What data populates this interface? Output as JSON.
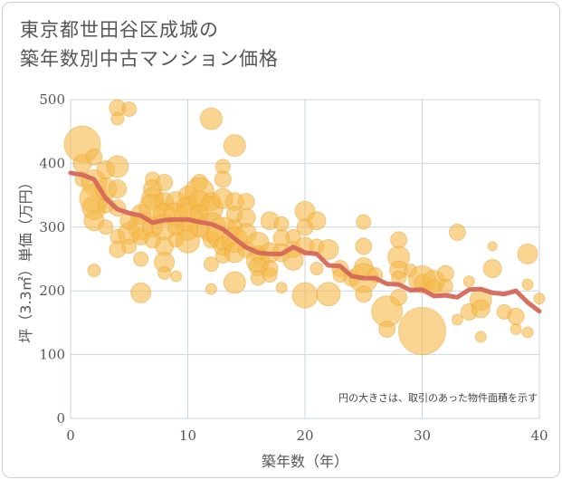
{
  "title_lines": [
    "東京都世田谷区成城の",
    "築年数別中古マンション価格"
  ],
  "note": "円の大きさは、取引のあった物件面積を示す",
  "colors": {
    "bubble": "#f5b947",
    "bubble_stroke": "#e9a63a",
    "trend": "#d5675a",
    "grid": "#c9d6e3",
    "plot_bg": "#ffffff"
  },
  "chart_data": {
    "type": "scatter",
    "xlabel": "築年数（年）",
    "ylabel": "坪（3.3㎡）単価（万円）",
    "xlim": [
      0,
      40
    ],
    "ylim": [
      0,
      500
    ],
    "xticks": [
      0,
      10,
      20,
      30,
      40
    ],
    "yticks": [
      0,
      100,
      200,
      300,
      400,
      500
    ],
    "grid": true,
    "bubbles": [
      [
        1,
        430,
        20
      ],
      [
        1,
        400,
        10
      ],
      [
        1,
        375,
        8
      ],
      [
        2,
        410,
        9
      ],
      [
        2,
        370,
        14
      ],
      [
        2,
        345,
        16
      ],
      [
        2,
        330,
        13
      ],
      [
        2,
        310,
        11
      ],
      [
        2,
        232,
        7
      ],
      [
        3,
        390,
        10
      ],
      [
        3,
        360,
        12
      ],
      [
        3,
        335,
        9
      ],
      [
        3,
        300,
        8
      ],
      [
        4,
        487,
        9
      ],
      [
        4,
        470,
        7
      ],
      [
        4,
        395,
        12
      ],
      [
        4,
        360,
        10
      ],
      [
        4,
        330,
        9
      ],
      [
        4,
        285,
        8
      ],
      [
        4,
        265,
        9
      ],
      [
        5,
        485,
        8
      ],
      [
        5,
        310,
        10
      ],
      [
        5,
        290,
        12
      ],
      [
        5,
        270,
        8
      ],
      [
        6,
        320,
        11
      ],
      [
        6,
        300,
        14
      ],
      [
        6,
        285,
        9
      ],
      [
        6,
        250,
        8
      ],
      [
        6,
        197,
        11
      ],
      [
        7,
        375,
        8
      ],
      [
        7,
        360,
        10
      ],
      [
        7,
        345,
        12
      ],
      [
        7,
        330,
        15
      ],
      [
        7,
        300,
        11
      ],
      [
        7,
        280,
        9
      ],
      [
        8,
        370,
        9
      ],
      [
        8,
        340,
        10
      ],
      [
        8,
        320,
        12
      ],
      [
        8,
        300,
        14
      ],
      [
        8,
        270,
        10
      ],
      [
        8,
        245,
        11
      ],
      [
        8,
        228,
        7
      ],
      [
        9,
        340,
        11
      ],
      [
        9,
        320,
        13
      ],
      [
        9,
        300,
        9
      ],
      [
        9,
        280,
        8
      ],
      [
        9,
        223,
        6
      ],
      [
        10,
        350,
        10
      ],
      [
        10,
        330,
        12
      ],
      [
        10,
        315,
        15
      ],
      [
        10,
        295,
        11
      ],
      [
        10,
        278,
        13
      ],
      [
        11,
        370,
        9
      ],
      [
        11,
        355,
        16
      ],
      [
        11,
        340,
        12
      ],
      [
        11,
        320,
        10
      ],
      [
        11,
        300,
        11
      ],
      [
        12,
        470,
        12
      ],
      [
        12,
        340,
        10
      ],
      [
        12,
        330,
        13
      ],
      [
        12,
        300,
        16
      ],
      [
        12,
        280,
        9
      ],
      [
        12,
        242,
        8
      ],
      [
        12,
        203,
        6
      ],
      [
        13,
        395,
        8
      ],
      [
        13,
        375,
        9
      ],
      [
        13,
        345,
        11
      ],
      [
        13,
        290,
        18
      ],
      [
        13,
        270,
        10
      ],
      [
        13,
        255,
        8
      ],
      [
        14,
        428,
        12
      ],
      [
        14,
        340,
        10
      ],
      [
        14,
        320,
        9
      ],
      [
        14,
        300,
        8
      ],
      [
        14,
        280,
        14
      ],
      [
        14,
        260,
        11
      ],
      [
        14,
        213,
        12
      ],
      [
        15,
        340,
        9
      ],
      [
        15,
        315,
        10
      ],
      [
        15,
        290,
        11
      ],
      [
        15,
        265,
        9
      ],
      [
        16,
        275,
        12
      ],
      [
        16,
        258,
        9
      ],
      [
        16,
        248,
        13
      ],
      [
        16,
        238,
        10
      ],
      [
        16,
        220,
        8
      ],
      [
        17,
        310,
        10
      ],
      [
        17,
        260,
        11
      ],
      [
        17,
        235,
        9
      ],
      [
        17,
        225,
        8
      ],
      [
        18,
        305,
        8
      ],
      [
        18,
        283,
        9
      ],
      [
        18,
        260,
        10
      ],
      [
        18,
        205,
        6
      ],
      [
        19,
        285,
        8
      ],
      [
        19,
        265,
        9
      ],
      [
        19,
        248,
        11
      ],
      [
        20,
        325,
        11
      ],
      [
        20,
        300,
        9
      ],
      [
        20,
        270,
        10
      ],
      [
        20,
        193,
        14
      ],
      [
        21,
        310,
        10
      ],
      [
        21,
        270,
        8
      ],
      [
        21,
        235,
        7
      ],
      [
        22,
        265,
        11
      ],
      [
        22,
        195,
        13
      ],
      [
        23,
        235,
        9
      ],
      [
        23,
        225,
        8
      ],
      [
        24,
        220,
        9
      ],
      [
        25,
        308,
        8
      ],
      [
        25,
        270,
        9
      ],
      [
        25,
        238,
        10
      ],
      [
        25,
        220,
        16
      ],
      [
        25,
        195,
        9
      ],
      [
        26,
        225,
        8
      ],
      [
        27,
        168,
        17
      ],
      [
        27,
        140,
        9
      ],
      [
        28,
        280,
        9
      ],
      [
        28,
        253,
        12
      ],
      [
        28,
        233,
        10
      ],
      [
        28,
        220,
        8
      ],
      [
        28,
        190,
        9
      ],
      [
        29,
        232,
        7
      ],
      [
        30,
        137,
        26
      ],
      [
        30,
        218,
        15
      ],
      [
        30,
        213,
        9
      ],
      [
        31,
        215,
        12
      ],
      [
        31,
        205,
        9
      ],
      [
        32,
        227,
        9
      ],
      [
        32,
        207,
        8
      ],
      [
        33,
        292,
        9
      ],
      [
        33,
        155,
        6
      ],
      [
        34,
        167,
        9
      ],
      [
        34,
        215,
        6
      ],
      [
        35,
        186,
        12
      ],
      [
        35,
        172,
        10
      ],
      [
        35,
        128,
        6
      ],
      [
        36,
        270,
        5
      ],
      [
        36,
        235,
        10
      ],
      [
        37,
        167,
        8
      ],
      [
        38,
        140,
        6
      ],
      [
        38,
        160,
        9
      ],
      [
        39,
        258,
        11
      ],
      [
        39,
        210,
        6
      ],
      [
        39,
        135,
        6
      ],
      [
        40,
        188,
        6
      ]
    ],
    "trend": {
      "x": [
        0,
        1,
        2,
        3,
        4,
        5,
        6,
        7,
        8,
        9,
        10,
        11,
        12,
        13,
        14,
        15,
        16,
        17,
        18,
        19,
        20,
        21,
        22,
        23,
        24,
        25,
        26,
        27,
        28,
        29,
        30,
        31,
        32,
        33,
        34,
        35,
        36,
        37,
        38,
        39,
        40
      ],
      "y": [
        385,
        382,
        375,
        345,
        328,
        322,
        318,
        307,
        311,
        312,
        312,
        308,
        305,
        297,
        282,
        268,
        260,
        258,
        258,
        269,
        260,
        258,
        240,
        239,
        223,
        220,
        220,
        211,
        210,
        201,
        202,
        192,
        193,
        190,
        202,
        203,
        197,
        195,
        200,
        182,
        168
      ]
    }
  }
}
